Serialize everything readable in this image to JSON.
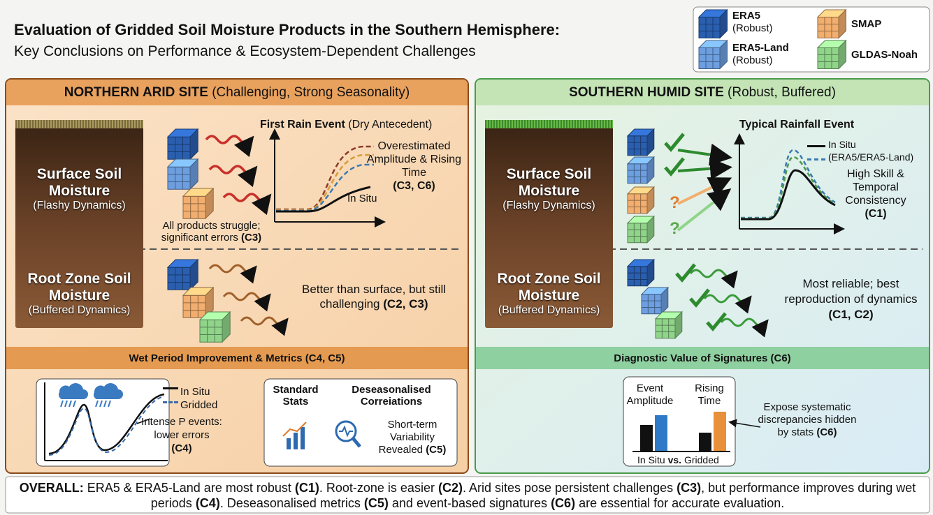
{
  "header": {
    "title": "Evaluation of Gridded Soil Moisture Products in the Southern Hemisphere:",
    "subtitle": "Key Conclusions on Performance & Ecosystem-Dependent Challenges"
  },
  "legend": {
    "items": [
      {
        "name": "ERA5",
        "note": "(Robust)"
      },
      {
        "name": "ERA5-Land",
        "note": "(Robust)"
      },
      {
        "name": "SMAP"
      },
      {
        "name": "GLDAS-Noah"
      }
    ]
  },
  "left": {
    "heading": "NORTHERN ARID SITE",
    "heading_note": "(Challenging, Strong Seasonality)",
    "surface": {
      "label": "Surface Soil Moisture",
      "note": "(Flashy Dynamics)"
    },
    "chart": {
      "title": "First Rain Event",
      "title_note": "(Dry Antecedent)",
      "annotation": "Overestimated Amplitude & Rising Time",
      "annotation_ref": "(C3, C6)",
      "series_label": "In Situ"
    },
    "caption": "All products struggle; significant errors",
    "caption_ref": "(C3)",
    "root": {
      "label": "Root Zone Soil Moisture",
      "note": "(Buffered Dynamics)"
    },
    "root_text": "Better than surface, but still challenging",
    "root_ref": "(C2, C3)",
    "bottom_heading": "Wet Period Improvement & Metrics (C4, C5)",
    "mini_legend": [
      "In Situ",
      "Gridded"
    ],
    "mini_annotation": "Intense P events: lower errors",
    "mini_ref": "(C4)",
    "stats": {
      "standard": "Standard Stats",
      "deseasonalised": "Deseasonalised Correiations",
      "note": "Short-term Variability Revealed",
      "ref": "(C5)"
    }
  },
  "right": {
    "heading": "SOUTHERN HUMID SITE",
    "heading_note": "(Robust, Buffered)",
    "surface": {
      "label": "Surface Soil Moisture",
      "note": "(Flashy Dynamics)"
    },
    "chart": {
      "title": "Typical Rainfall Event",
      "legend": [
        "In Situ",
        "(ERA5/ERA5-Land)"
      ],
      "annotation": "High Skill & Temporal Consistency",
      "annotation_ref": "(C1)"
    },
    "root": {
      "label": "Root Zone Soil Moisture",
      "note": "(Buffered Dynamics)"
    },
    "root_text": "Most reliable; best reproduction of dynamics",
    "root_ref": "(C1, C2)",
    "bottom_heading": "Diagnostic Value of Signatures (C6)",
    "signatures": {
      "amplitude": "Event Amplitude",
      "rising": "Rising Time",
      "in_situ": "In Situ",
      "vs": "vs.",
      "gridded": "Gridded"
    },
    "annotation": "Expose systematic discrepancies hidden by stats",
    "annotation_ref": "(C6)"
  },
  "footer": {
    "parts": [
      {
        "text": "OVERALL:",
        "bold": true
      },
      {
        "text": " ERA5 & ERA5-Land are most robust ",
        "bold": false
      },
      {
        "text": "(C1)",
        "bold": true
      },
      {
        "text": ". Root-zone is easier ",
        "bold": false
      },
      {
        "text": "(C2)",
        "bold": true
      },
      {
        "text": ". Arid sites pose persistent challenges ",
        "bold": false
      },
      {
        "text": "(C3)",
        "bold": true
      },
      {
        "text": ", but performance improves during wet periods ",
        "bold": false
      },
      {
        "text": "(C4)",
        "bold": true
      },
      {
        "text": ". Deseasonalised metrics ",
        "bold": false
      },
      {
        "text": "(C5)",
        "bold": true
      },
      {
        "text": " and event-based signatures ",
        "bold": false
      },
      {
        "text": "(C6)",
        "bold": true
      },
      {
        "text": " are essential for accurate evaluation.",
        "bold": false
      }
    ]
  }
}
